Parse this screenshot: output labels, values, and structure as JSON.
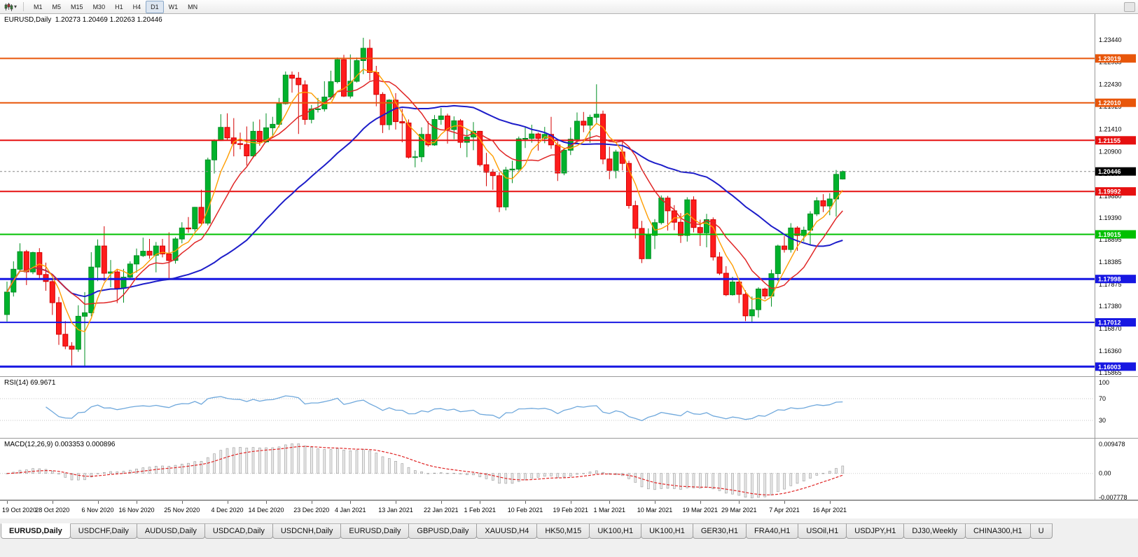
{
  "toolbar": {
    "timeframes": [
      "M1",
      "M5",
      "M15",
      "M30",
      "H1",
      "H4",
      "D1",
      "W1",
      "MN"
    ],
    "active_timeframe": "D1"
  },
  "chart_data": {
    "type": "candlestick",
    "title": "EURUSD,Daily",
    "ohlc_text": "1.20273 1.20469 1.20263 1.20446",
    "price_axis": {
      "top_price": 1.2403,
      "bottom_price": 1.15769,
      "labels": [
        "1.23440",
        "1.22935",
        "1.22430",
        "1.21925",
        "1.21410",
        "1.20900",
        "1.20390",
        "1.19880",
        "1.19390",
        "1.18895",
        "1.18385",
        "1.17875",
        "1.17380",
        "1.16870",
        "1.16360",
        "1.15865"
      ]
    },
    "x_labels": [
      {
        "i": 0,
        "t": "19 Oct 2020"
      },
      {
        "i": 7,
        "t": "28 Oct 2020"
      },
      {
        "i": 14,
        "t": "6 Nov 2020"
      },
      {
        "i": 20,
        "t": "16 Nov 2020"
      },
      {
        "i": 27,
        "t": "25 Nov 2020"
      },
      {
        "i": 34,
        "t": "4 Dec 2020"
      },
      {
        "i": 40,
        "t": "14 Dec 2020"
      },
      {
        "i": 47,
        "t": "23 Dec 2020"
      },
      {
        "i": 53,
        "t": "4 Jan 2021"
      },
      {
        "i": 60,
        "t": "13 Jan 2021"
      },
      {
        "i": 67,
        "t": "22 Jan 2021"
      },
      {
        "i": 73,
        "t": "1 Feb 2021"
      },
      {
        "i": 80,
        "t": "10 Feb 2021"
      },
      {
        "i": 87,
        "t": "19 Feb 2021"
      },
      {
        "i": 93,
        "t": "1 Mar 2021"
      },
      {
        "i": 100,
        "t": "10 Mar 2021"
      },
      {
        "i": 107,
        "t": "19 Mar 2021"
      },
      {
        "i": 113,
        "t": "29 Mar 2021"
      },
      {
        "i": 120,
        "t": "7 Apr 2021"
      },
      {
        "i": 127,
        "t": "16 Apr 2021"
      }
    ],
    "candles": [
      [
        1.1719,
        1.1794,
        1.1703,
        1.177
      ],
      [
        1.177,
        1.184,
        1.176,
        1.1822
      ],
      [
        1.1822,
        1.1881,
        1.1817,
        1.1862
      ],
      [
        1.1862,
        1.1866,
        1.1786,
        1.1816
      ],
      [
        1.1816,
        1.1862,
        1.1811,
        1.186
      ],
      [
        1.186,
        1.187,
        1.18,
        1.181
      ],
      [
        1.181,
        1.1837,
        1.1773,
        1.1794
      ],
      [
        1.1794,
        1.18,
        1.1718,
        1.1746
      ],
      [
        1.1746,
        1.1759,
        1.165,
        1.1674
      ],
      [
        1.1674,
        1.1704,
        1.164,
        1.1647
      ],
      [
        1.1647,
        1.1656,
        1.1603,
        1.164
      ],
      [
        1.164,
        1.174,
        1.1634,
        1.1715
      ],
      [
        1.1715,
        1.177,
        1.1602,
        1.1723
      ],
      [
        1.1723,
        1.1861,
        1.1715,
        1.1827
      ],
      [
        1.1827,
        1.189,
        1.1795,
        1.1875
      ],
      [
        1.1875,
        1.192,
        1.1795,
        1.1813
      ],
      [
        1.1813,
        1.1843,
        1.1781,
        1.1816
      ],
      [
        1.1816,
        1.1823,
        1.1745,
        1.1779
      ],
      [
        1.1779,
        1.1823,
        1.1746,
        1.1804
      ],
      [
        1.1804,
        1.184,
        1.1799,
        1.1834
      ],
      [
        1.1834,
        1.1869,
        1.1814,
        1.1853
      ],
      [
        1.1853,
        1.1894,
        1.185,
        1.1863
      ],
      [
        1.1863,
        1.1891,
        1.1846,
        1.1854
      ],
      [
        1.1854,
        1.1884,
        1.1815,
        1.1875
      ],
      [
        1.1875,
        1.1891,
        1.1849,
        1.1857
      ],
      [
        1.1857,
        1.1906,
        1.1799,
        1.1842
      ],
      [
        1.1842,
        1.1895,
        1.1835,
        1.1891
      ],
      [
        1.1891,
        1.1929,
        1.1881,
        1.1916
      ],
      [
        1.1916,
        1.1941,
        1.1905,
        1.1914
      ],
      [
        1.1914,
        1.1964,
        1.1908,
        1.1963
      ],
      [
        1.1963,
        1.2003,
        1.1923,
        1.1927
      ],
      [
        1.1927,
        1.2076,
        1.1922,
        1.2071
      ],
      [
        1.2071,
        1.2118,
        1.204,
        1.2115
      ],
      [
        1.2115,
        1.2175,
        1.2114,
        1.2145
      ],
      [
        1.2145,
        1.2177,
        1.2116,
        1.2121
      ],
      [
        1.2121,
        1.2166,
        1.2079,
        1.2108
      ],
      [
        1.2108,
        1.2133,
        1.2095,
        1.2106
      ],
      [
        1.2106,
        1.2147,
        1.2058,
        1.208
      ],
      [
        1.208,
        1.2158,
        1.2075,
        1.2136
      ],
      [
        1.2136,
        1.2163,
        1.2103,
        1.2112
      ],
      [
        1.2112,
        1.2177,
        1.211,
        1.2144
      ],
      [
        1.2144,
        1.2169,
        1.2122,
        1.2152
      ],
      [
        1.2152,
        1.2212,
        1.2145,
        1.2199
      ],
      [
        1.2199,
        1.2272,
        1.2197,
        1.2264
      ],
      [
        1.2264,
        1.2272,
        1.2224,
        1.2257
      ],
      [
        1.2257,
        1.2271,
        1.213,
        1.2242
      ],
      [
        1.2242,
        1.2252,
        1.2151,
        1.2163
      ],
      [
        1.2163,
        1.2196,
        1.2154,
        1.2187
      ],
      [
        1.2187,
        1.2212,
        1.2179,
        1.2187
      ],
      [
        1.2187,
        1.225,
        1.2181,
        1.2214
      ],
      [
        1.2214,
        1.2274,
        1.2208,
        1.2249
      ],
      [
        1.2249,
        1.2304,
        1.2245,
        1.2299
      ],
      [
        1.2299,
        1.231,
        1.2214,
        1.2216
      ],
      [
        1.2216,
        1.2311,
        1.2211,
        1.225
      ],
      [
        1.225,
        1.2304,
        1.2247,
        1.2297
      ],
      [
        1.2297,
        1.2349,
        1.2266,
        1.2325
      ],
      [
        1.2325,
        1.2345,
        1.2252,
        1.227
      ],
      [
        1.227,
        1.2285,
        1.2193,
        1.222
      ],
      [
        1.222,
        1.2225,
        1.2132,
        1.2151
      ],
      [
        1.2151,
        1.2209,
        1.2139,
        1.2207
      ],
      [
        1.2207,
        1.2223,
        1.214,
        1.2158
      ],
      [
        1.2158,
        1.2187,
        1.2111,
        1.2155
      ],
      [
        1.2155,
        1.2163,
        1.2074,
        1.2077
      ],
      [
        1.2077,
        1.2092,
        1.2054,
        1.2078
      ],
      [
        1.2078,
        1.2145,
        1.2066,
        1.2129
      ],
      [
        1.2129,
        1.2159,
        1.2101,
        1.2105
      ],
      [
        1.2105,
        1.2173,
        1.2103,
        1.2163
      ],
      [
        1.2163,
        1.2189,
        1.2151,
        1.2171
      ],
      [
        1.2171,
        1.2176,
        1.2108,
        1.214
      ],
      [
        1.214,
        1.217,
        1.2118,
        1.216
      ],
      [
        1.216,
        1.2164,
        1.2098,
        1.2111
      ],
      [
        1.2111,
        1.2142,
        1.2077,
        1.2123
      ],
      [
        1.2123,
        1.2157,
        1.2093,
        1.2136
      ],
      [
        1.2136,
        1.2137,
        1.2056,
        1.206
      ],
      [
        1.206,
        1.2087,
        1.2011,
        1.2043
      ],
      [
        1.2043,
        1.205,
        1.2003,
        1.2035
      ],
      [
        1.2035,
        1.2043,
        1.1952,
        1.1964
      ],
      [
        1.1964,
        1.2055,
        1.1956,
        1.2048
      ],
      [
        1.2048,
        1.2069,
        1.2018,
        1.205
      ],
      [
        1.205,
        1.2124,
        1.2046,
        1.2119
      ],
      [
        1.2119,
        1.2145,
        1.2098,
        1.212
      ],
      [
        1.212,
        1.2151,
        1.211,
        1.213
      ],
      [
        1.213,
        1.2133,
        1.2092,
        1.212
      ],
      [
        1.212,
        1.2146,
        1.2109,
        1.2129
      ],
      [
        1.2129,
        1.2169,
        1.2096,
        1.2105
      ],
      [
        1.2105,
        1.2113,
        1.2023,
        1.2041
      ],
      [
        1.2041,
        1.2098,
        1.2036,
        1.2093
      ],
      [
        1.2093,
        1.2145,
        1.2082,
        1.2118
      ],
      [
        1.2118,
        1.2179,
        1.2107,
        1.2159
      ],
      [
        1.2159,
        1.218,
        1.2134,
        1.215
      ],
      [
        1.215,
        1.2174,
        1.211,
        1.2168
      ],
      [
        1.2168,
        1.2243,
        1.2155,
        1.2175
      ],
      [
        1.2175,
        1.2183,
        1.2061,
        1.2073
      ],
      [
        1.2073,
        1.2101,
        1.2027,
        1.2047
      ],
      [
        1.2047,
        1.2094,
        1.2029,
        1.2089
      ],
      [
        1.2089,
        1.2113,
        1.2047,
        1.2063
      ],
      [
        1.2063,
        1.2069,
        1.196,
        1.1967
      ],
      [
        1.1967,
        1.1978,
        1.1892,
        1.1915
      ],
      [
        1.1915,
        1.1932,
        1.1836,
        1.1846
      ],
      [
        1.1846,
        1.1915,
        1.1846,
        1.1899
      ],
      [
        1.1899,
        1.1936,
        1.1868,
        1.1928
      ],
      [
        1.1928,
        1.199,
        1.1924,
        1.1984
      ],
      [
        1.1984,
        1.1989,
        1.191,
        1.1955
      ],
      [
        1.1955,
        1.1968,
        1.1911,
        1.1929
      ],
      [
        1.1929,
        1.195,
        1.1882,
        1.1899
      ],
      [
        1.1899,
        1.1986,
        1.1885,
        1.198
      ],
      [
        1.198,
        1.1988,
        1.1906,
        1.1917
      ],
      [
        1.1917,
        1.1935,
        1.1875,
        1.1905
      ],
      [
        1.1905,
        1.1948,
        1.1872,
        1.1935
      ],
      [
        1.1935,
        1.194,
        1.1842,
        1.185
      ],
      [
        1.185,
        1.1861,
        1.1809,
        1.1813
      ],
      [
        1.1813,
        1.1829,
        1.1761,
        1.1764
      ],
      [
        1.1764,
        1.1805,
        1.1762,
        1.1793
      ],
      [
        1.1793,
        1.1797,
        1.1745,
        1.1765
      ],
      [
        1.1765,
        1.1774,
        1.1704,
        1.1716
      ],
      [
        1.1716,
        1.176,
        1.17,
        1.173
      ],
      [
        1.173,
        1.1781,
        1.1712,
        1.1777
      ],
      [
        1.1777,
        1.178,
        1.1754,
        1.1761
      ],
      [
        1.1761,
        1.1821,
        1.1737,
        1.1812
      ],
      [
        1.1812,
        1.1878,
        1.1795,
        1.1875
      ],
      [
        1.1875,
        1.1898,
        1.186,
        1.1867
      ],
      [
        1.1867,
        1.1927,
        1.186,
        1.1916
      ],
      [
        1.1916,
        1.192,
        1.1864,
        1.1899
      ],
      [
        1.1899,
        1.1919,
        1.1885,
        1.1911
      ],
      [
        1.1911,
        1.1954,
        1.1877,
        1.1948
      ],
      [
        1.1948,
        1.1986,
        1.1943,
        1.1978
      ],
      [
        1.1978,
        1.1993,
        1.1952,
        1.1966
      ],
      [
        1.1966,
        1.1995,
        1.1945,
        1.1982
      ],
      [
        1.1982,
        1.2048,
        1.1942,
        1.2038
      ],
      [
        1.20273,
        1.20469,
        1.20263,
        1.20446
      ]
    ],
    "candle_colors": {
      "up_fill": "#00b22c",
      "up_stroke": "#008f23",
      "down_fill": "#fe1c1c",
      "down_stroke": "#d40000"
    },
    "hlines": [
      {
        "price": 1.23019,
        "label": "1.23019",
        "color": "#e8560a",
        "width": 2
      },
      {
        "price": 1.2201,
        "label": "1.22010",
        "color": "#e8560a",
        "width": 2
      },
      {
        "price": 1.21155,
        "label": "1.21155",
        "color": "#e61010",
        "width": 2
      },
      {
        "price": 1.19992,
        "label": "1.19992",
        "color": "#e61010",
        "width": 2
      },
      {
        "price": 1.19015,
        "label": "1.19015",
        "color": "#00c000",
        "width": 2
      },
      {
        "price": 1.17998,
        "label": "1.17998",
        "color": "#1717e2",
        "width": 3
      },
      {
        "price": 1.17012,
        "label": "1.17012",
        "color": "#1717e2",
        "width": 2
      },
      {
        "price": 1.16003,
        "label": "1.16003",
        "color": "#1717e2",
        "width": 3
      }
    ],
    "current_price": {
      "value": 1.20446,
      "label": "1.20446",
      "color": "#000000"
    },
    "moving_averages": [
      {
        "name": "ma-slow-line",
        "period": 30,
        "method": "sma",
        "color": "#1d1dc9",
        "width": 2
      },
      {
        "name": "ma-mid-line",
        "period": 10,
        "method": "sma",
        "color": "#e02525",
        "width": 1.5
      },
      {
        "name": "ma-fast-line",
        "period": 5,
        "method": "sma",
        "color": "#ff9d00",
        "width": 1.4
      }
    ],
    "rsi": {
      "label": "RSI(14) 69.9671",
      "period": 14,
      "levels": [
        "100",
        "70",
        "30"
      ],
      "color": "#6fa8dc"
    },
    "macd": {
      "label": "MACD(12,26,9) 0.003353 0.000896",
      "fast": 12,
      "slow": 26,
      "signal_period": 9,
      "axis_labels": [
        "0.009478",
        "0.00",
        "-0.007778"
      ],
      "max": 0.009478,
      "min": -0.007778,
      "hist_fill": "#e9e9e9",
      "hist_stroke": "#9a9a9a",
      "signal_color": "#e02525"
    }
  },
  "tabbar": {
    "tabs": [
      {
        "label": "EURUSD,Daily",
        "active": true
      },
      {
        "label": "USDCHF,Daily",
        "active": false
      },
      {
        "label": "AUDUSD,Daily",
        "active": false
      },
      {
        "label": "USDCAD,Daily",
        "active": false
      },
      {
        "label": "USDCNH,Daily",
        "active": false
      },
      {
        "label": "EURUSD,Daily",
        "active": false
      },
      {
        "label": "GBPUSD,Daily",
        "active": false
      },
      {
        "label": "XAUUSD,H4",
        "active": false
      },
      {
        "label": "HK50,M15",
        "active": false
      },
      {
        "label": "UK100,H1",
        "active": false
      },
      {
        "label": "UK100,H1",
        "active": false
      },
      {
        "label": "GER30,H1",
        "active": false
      },
      {
        "label": "FRA40,H1",
        "active": false
      },
      {
        "label": "USOil,H1",
        "active": false
      },
      {
        "label": "USDJPY,H1",
        "active": false
      },
      {
        "label": "DJ30,Weekly",
        "active": false
      },
      {
        "label": "CHINA300,H1",
        "active": false
      },
      {
        "label": "U",
        "active": false
      }
    ]
  }
}
